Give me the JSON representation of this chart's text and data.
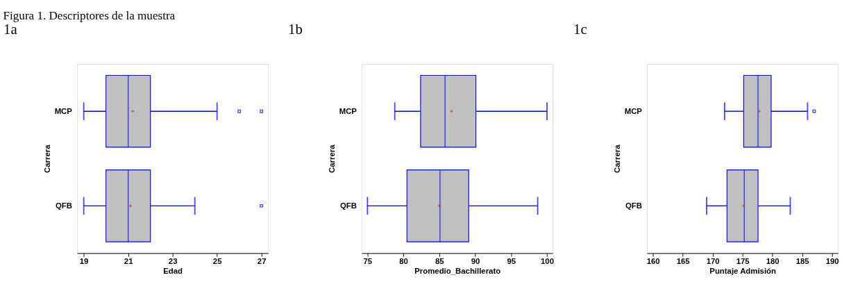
{
  "chart_data": [
    {
      "type": "box",
      "orientation": "horizontal",
      "title": "1a",
      "xlabel": "Edad",
      "ylabel": "Carrera",
      "categories": [
        "MCP",
        "QFB"
      ],
      "xlim": [
        18.7,
        27.3
      ],
      "xticks": [
        19,
        21,
        23,
        25,
        27
      ],
      "annotations": [
        "Figura 1. Descriptores de la muestra"
      ],
      "series": [
        {
          "color": "#c0c0c0",
          "boxes": [
            {
              "low": 19,
              "q1": 20,
              "median": 21,
              "q3": 22,
              "high": 25,
              "mean": 21.2,
              "outliers": [
                26,
                27
              ]
            },
            {
              "low": 19,
              "q1": 20,
              "median": 21,
              "q3": 22,
              "high": 24,
              "mean": 21.1,
              "outliers": [
                27
              ]
            }
          ]
        }
      ]
    },
    {
      "type": "box",
      "orientation": "horizontal",
      "title": "1b",
      "xlabel": "Promedio_Bachillerato",
      "ylabel": "Carrera",
      "categories": [
        "MCP",
        "QFB"
      ],
      "xlim": [
        74.2,
        100.8
      ],
      "xticks": [
        75,
        80,
        85,
        90,
        95,
        100
      ],
      "series": [
        {
          "color": "#c0c0c0",
          "boxes": [
            {
              "low": 78.8,
              "q1": 82.4,
              "median": 85.8,
              "q3": 90.1,
              "high": 100,
              "mean": 86.7
            },
            {
              "low": 75,
              "q1": 80.5,
              "median": 85.1,
              "q3": 89.1,
              "high": 98.7,
              "mean": 85.0
            }
          ]
        }
      ]
    },
    {
      "type": "box",
      "orientation": "horizontal",
      "title": "1c",
      "xlabel": "Puntaje Admisión",
      "ylabel": "Carrera",
      "categories": [
        "MCP",
        "QFB"
      ],
      "xlim": [
        159,
        191
      ],
      "xticks": [
        160,
        165,
        170,
        175,
        180,
        185,
        190
      ],
      "series": [
        {
          "color": "#c0c0c0",
          "boxes": [
            {
              "low": 172.0,
              "q1": 175.2,
              "median": 177.6,
              "q3": 179.8,
              "high": 185.9,
              "mean": 177.8,
              "outliers": [
                187.0
              ]
            },
            {
              "low": 169.0,
              "q1": 172.4,
              "median": 175.3,
              "q3": 177.6,
              "high": 183.0,
              "mean": 175.2
            }
          ]
        }
      ]
    }
  ]
}
